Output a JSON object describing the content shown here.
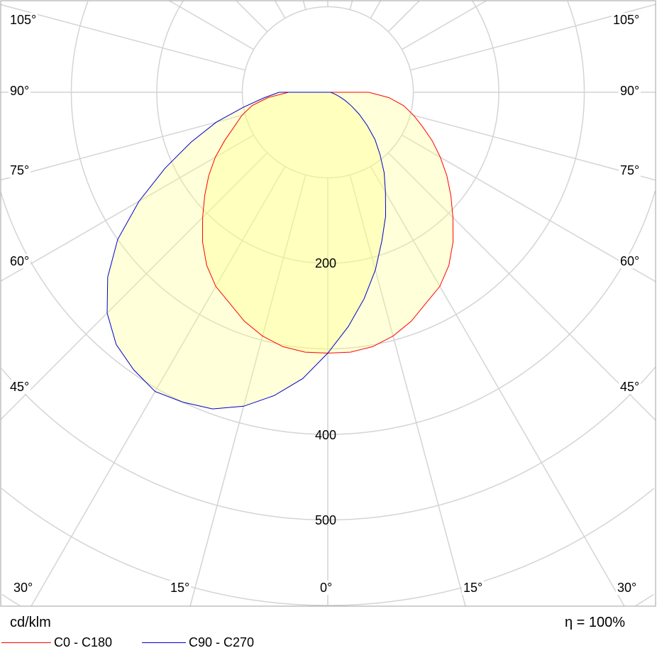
{
  "chart_data": {
    "type": "polar",
    "unit_label": "cd/klm",
    "efficiency_label": "η = 100%",
    "radial_tick_labels": [
      {
        "value": 200,
        "label": "200"
      },
      {
        "value": 400,
        "label": "400"
      },
      {
        "value": 500,
        "label": "500"
      }
    ],
    "radial_rings": [
      100,
      200,
      300,
      400,
      500,
      600,
      700
    ],
    "angle_step": 15,
    "angle_labels_side": [
      "105°",
      "90°",
      "75°",
      "60°",
      "45°",
      "30°"
    ],
    "angle_labels_bottom": [
      "15°",
      "0°",
      "15°"
    ],
    "grid": true,
    "legend_placement": "bottom-left",
    "series": [
      {
        "name": "C0 - C180",
        "color": "#ff0000",
        "angles": [
          -90,
          -85,
          -80,
          -75,
          -70,
          -65,
          -60,
          -55,
          -50,
          -45,
          -40,
          -35,
          -30,
          -25,
          -20,
          -15,
          -10,
          -5,
          0,
          5,
          10,
          15,
          20,
          25,
          30,
          35,
          40,
          45,
          50,
          55,
          60,
          65,
          70,
          75,
          80,
          85,
          90
        ],
        "values": [
          46,
          70,
          90,
          104,
          116,
          133,
          152,
          170,
          188,
          207,
          228,
          247,
          262,
          272,
          285,
          295,
          302,
          305,
          305,
          305,
          302,
          295,
          285,
          272,
          262,
          247,
          228,
          207,
          188,
          170,
          152,
          135,
          118,
          104,
          90,
          72,
          48
        ]
      },
      {
        "name": "C90 - C270",
        "color": "#0000cc",
        "angles": [
          -90,
          -85,
          -80,
          -75,
          -70,
          -65,
          -60,
          -55,
          -50,
          -45,
          -40,
          -35,
          -30,
          -25,
          -20,
          -15,
          -10,
          -5,
          0,
          5,
          10,
          15,
          20,
          25,
          30,
          35,
          40,
          45,
          50,
          55,
          60,
          65,
          70,
          75,
          80,
          85,
          90
        ],
        "values": [
          57,
          75,
          100,
          135,
          170,
          210,
          255,
          300,
          336,
          365,
          385,
          396,
          404,
          400,
          394,
          380,
          360,
          336,
          305,
          275,
          245,
          215,
          185,
          160,
          135,
          115,
          95,
          78,
          60,
          45,
          32,
          22,
          14,
          9,
          6,
          4,
          4
        ]
      }
    ],
    "fill_color": "#ffff80"
  }
}
